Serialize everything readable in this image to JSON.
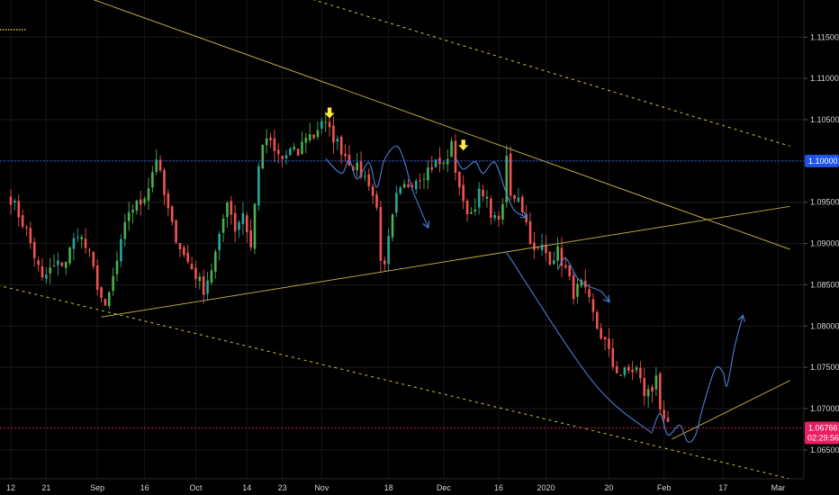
{
  "chart_data": {
    "type": "candlestick",
    "title": "",
    "xlabel": "",
    "ylabel": "",
    "ylim": [
      1.0615,
      1.1195
    ],
    "y_ticks": [
      "1.11500",
      "1.11000",
      "1.10500",
      "1.10000",
      "1.09500",
      "1.09000",
      "1.08500",
      "1.08000",
      "1.07500",
      "1.07000",
      "1.06500"
    ],
    "y_tick_values": [
      1.115,
      1.11,
      1.105,
      1.1,
      1.095,
      1.09,
      1.085,
      1.08,
      1.075,
      1.07,
      1.065
    ],
    "x_ticks": [
      "12",
      "21",
      "Sep",
      "16",
      "Oct",
      "14",
      "23",
      "Nov",
      "18",
      "Dec",
      "16",
      "2020",
      "20",
      "Feb",
      "17",
      "Mar"
    ],
    "x_tick_index": [
      0,
      9,
      22,
      34,
      47,
      60,
      69,
      79,
      96,
      110,
      124,
      136,
      152,
      166,
      181,
      195
    ],
    "reference_lines": [
      {
        "label": "1.10000",
        "value": 1.1,
        "color": "#2962ff"
      },
      {
        "label": "1.06766",
        "value": 1.06766,
        "color": "#e91e63"
      }
    ],
    "countdown": "02:29:56",
    "colors": {
      "up": "#26a69a",
      "up_bright": "#4caf50",
      "down": "#ef5350",
      "trend": "#b5a642",
      "projection": "#4a7fd4",
      "marker": "#ffeb3b"
    },
    "grid": true,
    "markers": [
      {
        "label": "down-arrow",
        "x_index": 81,
        "y": 1.1056
      },
      {
        "label": "down-arrow",
        "x_index": 115,
        "y": 1.1017
      }
    ],
    "trend_lines": [
      {
        "style": "solid",
        "points": [
          [
            -8,
            1.1245
          ],
          [
            198,
            1.0893
          ]
        ]
      },
      {
        "style": "solid",
        "points": [
          [
            23,
            1.0811
          ],
          [
            198,
            1.0945
          ]
        ]
      },
      {
        "style": "dashed",
        "points": [
          [
            43,
            1.1245
          ],
          [
            198,
            1.1018
          ]
        ]
      },
      {
        "style": "dashed",
        "points": [
          [
            -8,
            1.0855
          ],
          [
            198,
            1.0615
          ]
        ]
      },
      {
        "style": "solid",
        "points": [
          [
            168,
            1.0663
          ],
          [
            198,
            1.0734
          ]
        ]
      }
    ],
    "projections": [
      {
        "arrow": true,
        "points": [
          [
            80,
            1.1003
          ],
          [
            84,
            1.0985
          ],
          [
            86,
            1.1001
          ],
          [
            88,
            1.0978
          ],
          [
            91,
            1.0998
          ],
          [
            93,
            1.0968
          ],
          [
            95,
            1.1002
          ],
          [
            98,
            1.1018
          ],
          [
            100,
            1.1
          ],
          [
            102,
            1.0966
          ],
          [
            106,
            1.092
          ]
        ]
      },
      {
        "arrow": true,
        "points": [
          [
            113,
            1.1004
          ],
          [
            115,
            1.099
          ],
          [
            118,
            1.0999
          ],
          [
            120,
            1.0985
          ],
          [
            123,
            1.0998
          ],
          [
            126,
            1.096
          ],
          [
            128,
            1.094
          ],
          [
            131,
            1.0932
          ]
        ]
      },
      {
        "arrow": true,
        "points": [
          [
            139,
            1.0868
          ],
          [
            141,
            1.0882
          ],
          [
            144,
            1.0858
          ],
          [
            147,
            1.0848
          ],
          [
            150,
            1.0842
          ],
          [
            152,
            1.083
          ]
        ]
      },
      {
        "arrow": false,
        "points": [
          [
            126,
            1.0889
          ],
          [
            148,
            1.0732
          ],
          [
            163,
            1.067
          ]
        ]
      },
      {
        "arrow": true,
        "points": [
          [
            163,
            1.0672
          ],
          [
            165,
            1.0694
          ],
          [
            167,
            1.0668
          ],
          [
            170,
            1.068
          ],
          [
            172,
            1.066
          ],
          [
            174,
            1.0668
          ],
          [
            176,
            1.0704
          ],
          [
            179,
            1.0748
          ],
          [
            181,
            1.0744
          ],
          [
            182,
            1.0728
          ],
          [
            184,
            1.0776
          ],
          [
            186,
            1.0812
          ]
        ]
      }
    ],
    "anchors": [
      [
        0,
        1.0955
      ],
      [
        4,
        1.0915
      ],
      [
        8,
        1.0855
      ],
      [
        10,
        1.0868
      ],
      [
        14,
        1.088
      ],
      [
        17,
        1.0915
      ],
      [
        20,
        1.0885
      ],
      [
        22,
        1.085
      ],
      [
        24,
        1.0818
      ],
      [
        27,
        1.0878
      ],
      [
        30,
        1.094
      ],
      [
        33,
        1.095
      ],
      [
        35,
        1.097
      ],
      [
        37,
        1.1005
      ],
      [
        39,
        1.0958
      ],
      [
        41,
        1.092
      ],
      [
        44,
        1.0885
      ],
      [
        46,
        1.087
      ],
      [
        49,
        1.0845
      ],
      [
        51,
        1.087
      ],
      [
        53,
        1.0905
      ],
      [
        55,
        1.0955
      ],
      [
        57,
        1.0918
      ],
      [
        59,
        1.0938
      ],
      [
        61,
        1.0895
      ],
      [
        63,
        1.0998
      ],
      [
        65,
        1.1028
      ],
      [
        67,
        1.101
      ],
      [
        69,
        1.1002
      ],
      [
        71,
        1.1012
      ],
      [
        73,
        1.1008
      ],
      [
        75,
        1.1032
      ],
      [
        77,
        1.103
      ],
      [
        79,
        1.105
      ],
      [
        81,
        1.1035
      ],
      [
        83,
        1.1022
      ],
      [
        86,
        1.1
      ],
      [
        89,
        1.0985
      ],
      [
        91,
        1.0975
      ],
      [
        93,
        1.0942
      ],
      [
        94,
        1.0885
      ],
      [
        95,
        1.0868
      ],
      [
        96,
        1.0903
      ],
      [
        98,
        1.0955
      ],
      [
        100,
        1.0968
      ],
      [
        103,
        1.098
      ],
      [
        106,
        1.099
      ],
      [
        108,
        1.0998
      ],
      [
        110,
        1.0995
      ],
      [
        112,
        1.1018
      ],
      [
        113,
        1.099
      ],
      [
        114,
        1.097
      ],
      [
        115,
        1.0945
      ],
      [
        117,
        1.0938
      ],
      [
        119,
        1.096
      ],
      [
        121,
        1.095
      ],
      [
        123,
        1.0928
      ],
      [
        125,
        1.094
      ],
      [
        126,
        1.1005
      ],
      [
        127,
        1.0955
      ],
      [
        129,
        1.096
      ],
      [
        131,
        1.0925
      ],
      [
        133,
        1.0888
      ],
      [
        135,
        1.0895
      ],
      [
        137,
        1.0882
      ],
      [
        139,
        1.089
      ],
      [
        141,
        1.0868
      ],
      [
        143,
        1.084
      ],
      [
        145,
        1.085
      ],
      [
        147,
        1.0828
      ],
      [
        149,
        1.0798
      ],
      [
        151,
        1.078
      ],
      [
        153,
        1.0752
      ],
      [
        155,
        1.0742
      ],
      [
        157,
        1.0745
      ],
      [
        159,
        1.0748
      ],
      [
        161,
        1.0718
      ],
      [
        163,
        1.0722
      ],
      [
        164,
        1.0745
      ],
      [
        165,
        1.0702
      ],
      [
        166,
        1.068
      ],
      [
        167,
        1.0676
      ]
    ]
  }
}
